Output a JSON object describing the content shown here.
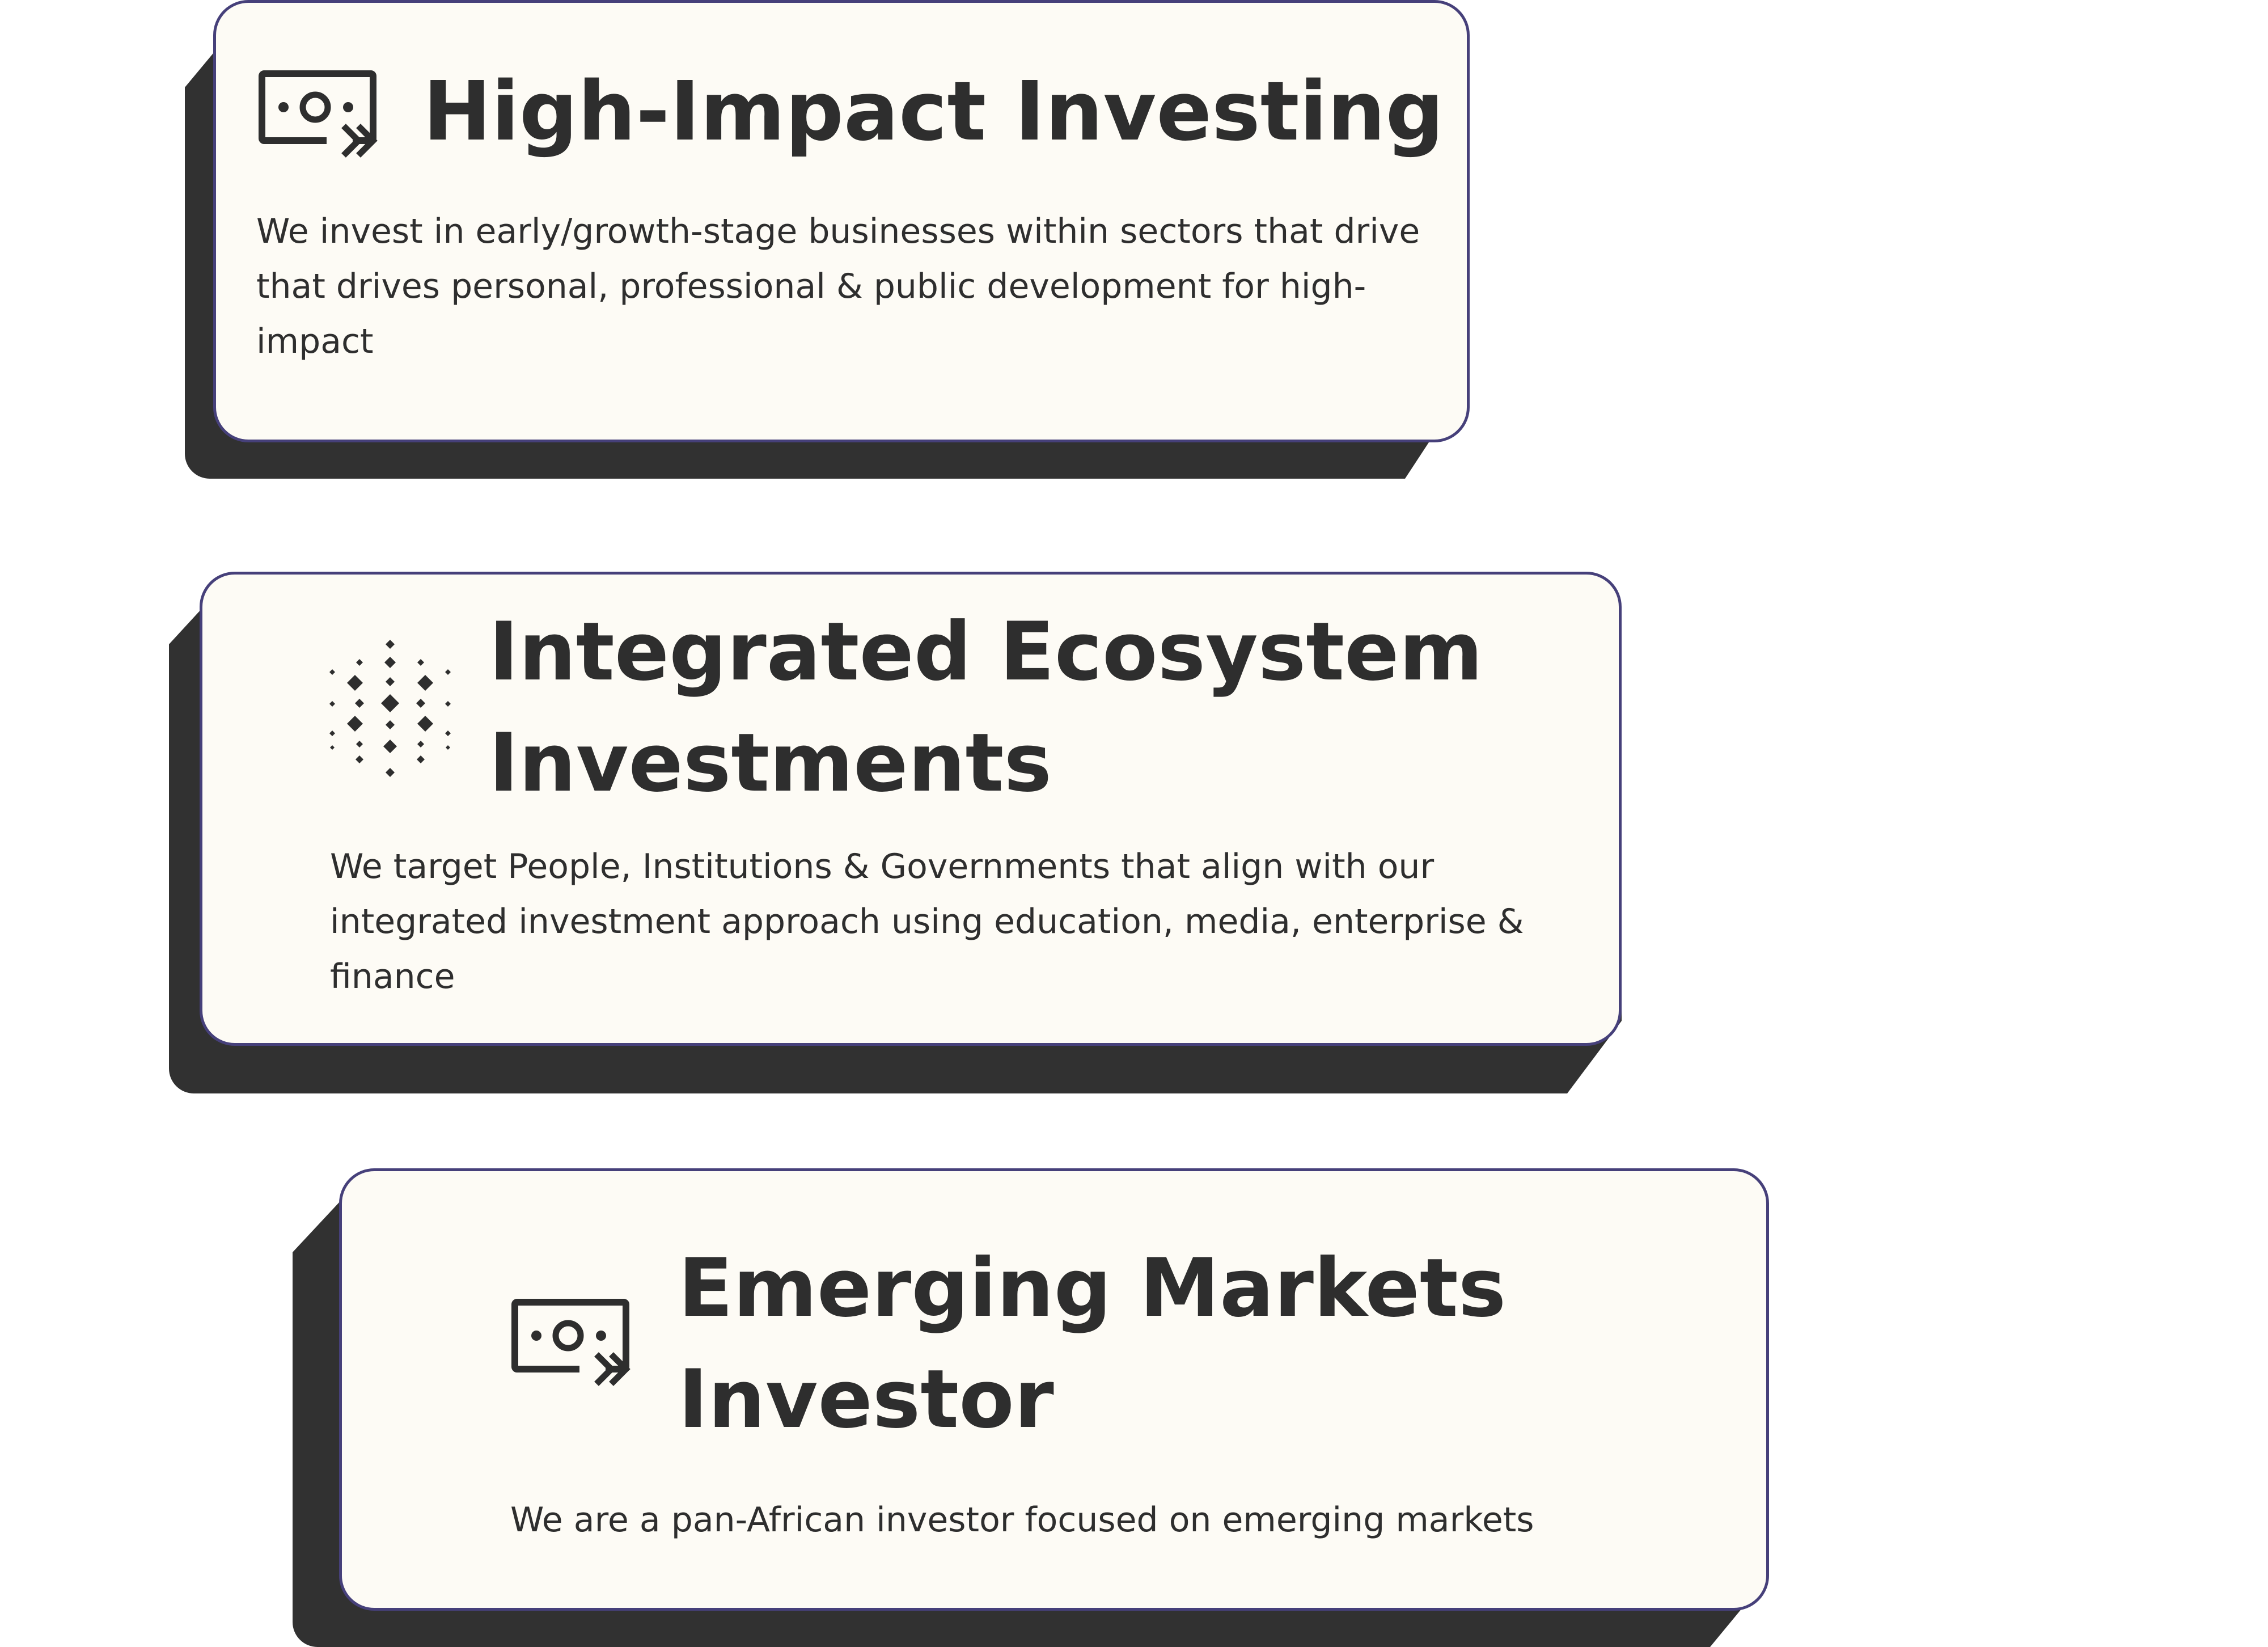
{
  "colors": {
    "card_background": "#fdfbf5",
    "card_border": "#46407a",
    "card_shadow": "#313131",
    "text": "#2e2e2e"
  },
  "cards": [
    {
      "icon": "money-transfer-icon",
      "title": "High-Impact Investing",
      "description": "We invest in  early/growth-stage businesses within sectors that drive that drives personal, professional & public development for high-impact"
    },
    {
      "icon": "diamond-grid-icon",
      "title": "Integrated Ecosystem Investments",
      "description": "We target People, Institutions & Governments that align with our integrated investment approach using education, media, enterprise & finance"
    },
    {
      "icon": "money-transfer-icon",
      "title": "Emerging Markets Investor",
      "description": "We are a pan-African investor focused on emerging markets"
    }
  ]
}
